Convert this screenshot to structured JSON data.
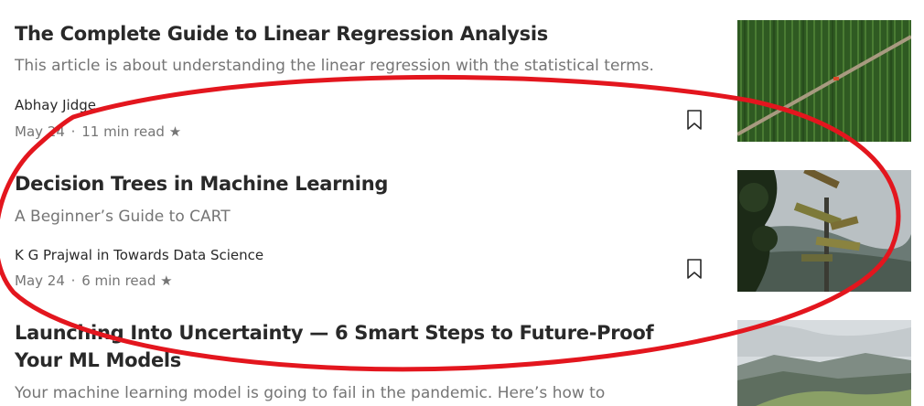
{
  "articles": [
    {
      "title": "The Complete Guide to Linear Regression Analysis",
      "subtitle": "This article is about understanding the linear regression with the statistical terms.",
      "author": "Abhay Jidge",
      "date": "May 24",
      "read_time": "11 min read",
      "separator": "·",
      "star": "★",
      "thumbnail_icon": "aerial-field-image"
    },
    {
      "title": "Decision Trees in Machine Learning",
      "subtitle": "A Beginner’s Guide to CART",
      "author": "K G Prajwal in Towards Data Science",
      "date": "May 24",
      "read_time": "6 min read",
      "separator": "·",
      "star": "★",
      "thumbnail_icon": "signpost-image"
    },
    {
      "title": "Launching Into Uncertainty — 6 Smart Steps to Future-Proof Your ML Models",
      "subtitle": "Your machine learning model is going to fail in the pandemic. Here’s how to",
      "thumbnail_icon": "mountain-landscape-image"
    }
  ],
  "colors": {
    "annotation_red": "#e3161e",
    "meta_gray": "#757575",
    "title_dark": "#292929"
  }
}
